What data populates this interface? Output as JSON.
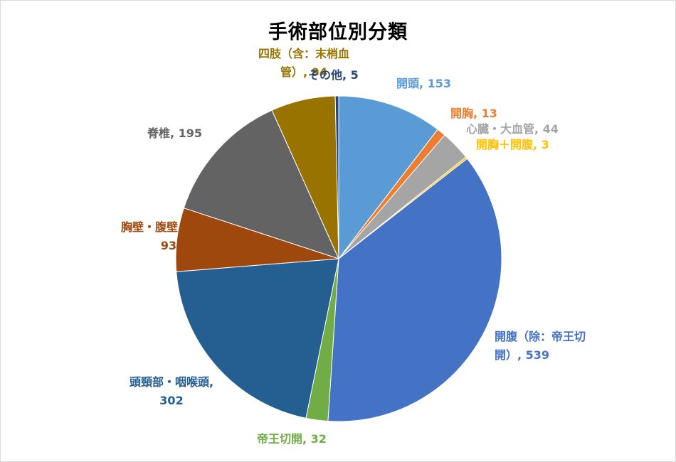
{
  "chart_data": {
    "type": "pie",
    "title": "手術部位別分類",
    "start": "12 o'clock",
    "direction": "clockwise",
    "slices": [
      {
        "name": "開頭",
        "value": 153,
        "color": "#5b9bd5",
        "label": [
          "開頭, 153"
        ]
      },
      {
        "name": "開胸",
        "value": 13,
        "color": "#ed7d31",
        "label": [
          "開胸, 13"
        ]
      },
      {
        "name": "心臓・大血管",
        "value": 44,
        "color": "#a5a5a5",
        "label": [
          "心臓・大血管, 44"
        ]
      },
      {
        "name": "開胸＋開腹",
        "value": 3,
        "color": "#ffc000",
        "label": [
          "開胸＋開腹, 3"
        ]
      },
      {
        "name": "開腹（除：帝王切開）",
        "value": 539,
        "color": "#4472c4",
        "label": [
          "開腹（除：帝王切",
          "開）, 539"
        ]
      },
      {
        "name": "帝王切開",
        "value": 32,
        "color": "#70ad47",
        "label": [
          "帝王切開, 32"
        ]
      },
      {
        "name": "頭頸部・咽喉頭",
        "value": 302,
        "color": "#255e91",
        "label": [
          "頭頸部・咽喉頭,",
          "302"
        ]
      },
      {
        "name": "胸壁・腹壁・会陰",
        "value": 93,
        "color": "#9e480e",
        "label": [
          "胸壁・腹壁・会陰,",
          "93"
        ]
      },
      {
        "name": "脊椎",
        "value": 195,
        "color": "#636363",
        "label": [
          "脊椎, 195"
        ]
      },
      {
        "name": "四肢（含：末梢血管）",
        "value": 94,
        "color": "#997300",
        "label": [
          "四肢（含：末梢血",
          "管）, 94"
        ]
      },
      {
        "name": "その他",
        "value": 5,
        "color": "#264478",
        "label": [
          "その他, 5"
        ]
      }
    ]
  }
}
